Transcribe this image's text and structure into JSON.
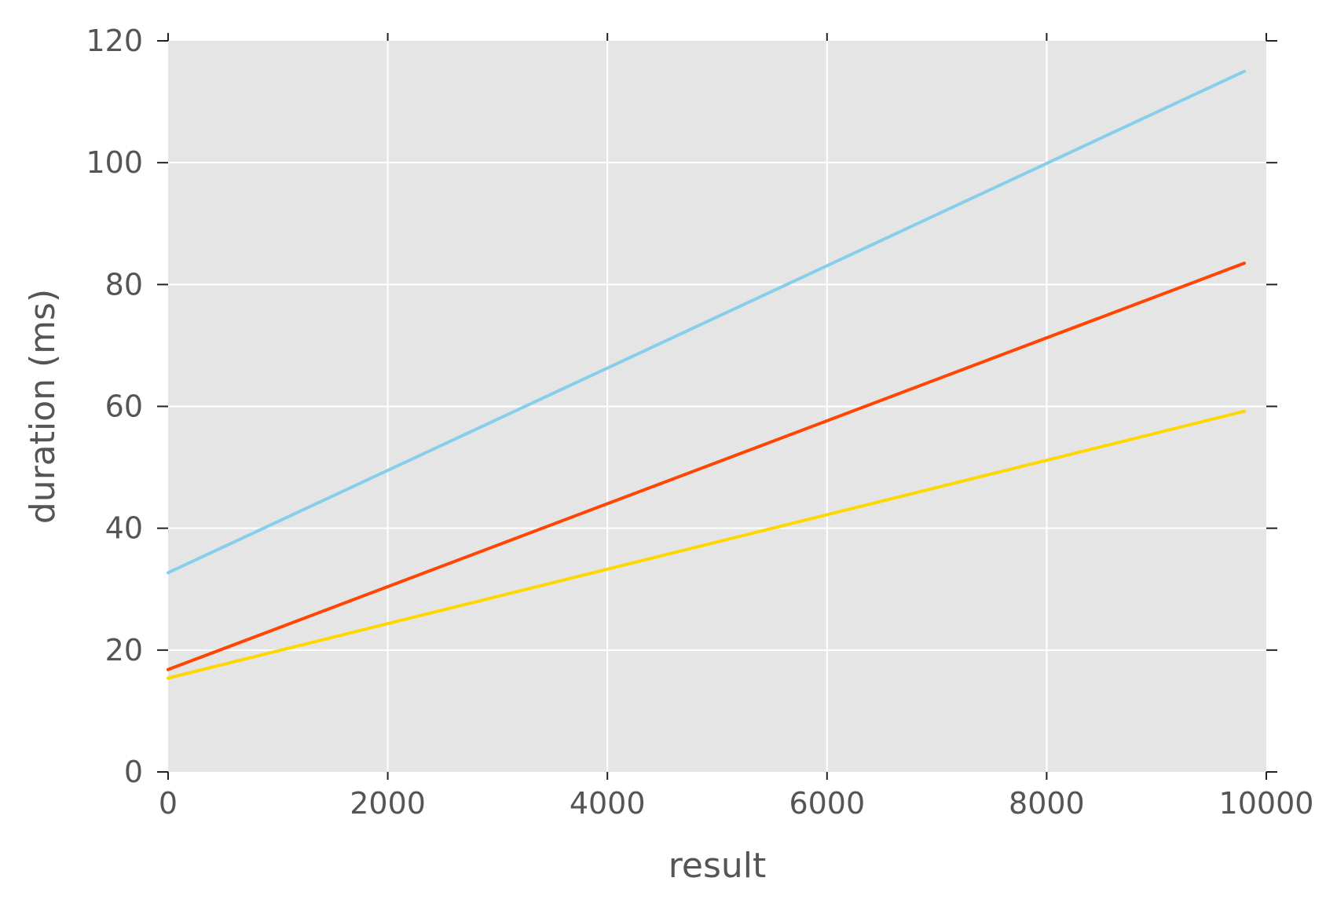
{
  "chart_data": {
    "type": "line",
    "title": "",
    "xlabel": "result",
    "ylabel": "duration (ms)",
    "xlim": [
      0,
      10000
    ],
    "ylim": [
      0,
      120
    ],
    "xticks": [
      0,
      2000,
      4000,
      6000,
      8000,
      10000
    ],
    "yticks": [
      0,
      20,
      40,
      60,
      80,
      100,
      120
    ],
    "xtick_labels": [
      "0",
      "2000",
      "4000",
      "6000",
      "8000",
      "10000"
    ],
    "ytick_labels": [
      "0",
      "20",
      "40",
      "60",
      "80",
      "100",
      "120"
    ],
    "grid": true,
    "background": "#e5e5e5",
    "legend": null,
    "series": [
      {
        "color": "#87ceeb",
        "x": [
          0,
          9800
        ],
        "y": [
          32.7,
          115.0
        ]
      },
      {
        "color": "#ff4500",
        "x": [
          0,
          9800
        ],
        "y": [
          16.8,
          83.5
        ]
      },
      {
        "color": "#ffd700",
        "x": [
          0,
          9800
        ],
        "y": [
          15.4,
          59.2
        ]
      }
    ]
  }
}
